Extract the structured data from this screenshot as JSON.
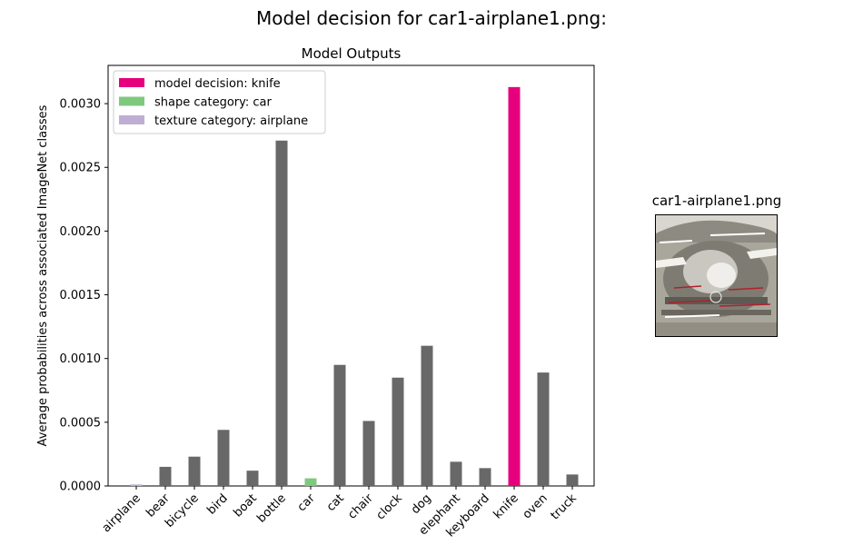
{
  "figure": {
    "title": "Model decision for car1-airplane1.png:",
    "image_caption": "car1-airplane1.png"
  },
  "colors": {
    "default_bar": "#686868",
    "decision": "#e7007d",
    "shape": "#7fc97f",
    "texture": "#beaed4"
  },
  "chart_data": {
    "type": "bar",
    "title": "Model Outputs",
    "xlabel": "",
    "ylabel": "Average probabilities across associated ImageNet classes",
    "categories": [
      "airplane",
      "bear",
      "bicycle",
      "bird",
      "boat",
      "bottle",
      "car",
      "cat",
      "chair",
      "clock",
      "dog",
      "elephant",
      "keyboard",
      "knife",
      "oven",
      "truck"
    ],
    "values": [
      1.2e-05,
      0.00015,
      0.00023,
      0.00044,
      0.00012,
      0.00271,
      6e-05,
      0.00095,
      0.00051,
      0.00085,
      0.0011,
      0.00019,
      0.00014,
      0.00313,
      0.00089,
      9e-05
    ],
    "highlights": {
      "airplane": "texture",
      "car": "shape",
      "knife": "decision"
    },
    "ylim": [
      0,
      0.0033
    ],
    "yticks": [
      "0.0000",
      "0.0005",
      "0.0010",
      "0.0015",
      "0.0020",
      "0.0025",
      "0.0030"
    ],
    "grid": false,
    "legend": {
      "placement": "top-left",
      "entries": [
        {
          "label": "model decision: knife",
          "kind": "decision"
        },
        {
          "label": "shape category: car",
          "kind": "shape"
        },
        {
          "label": "texture category: airplane",
          "kind": "texture"
        }
      ]
    }
  }
}
